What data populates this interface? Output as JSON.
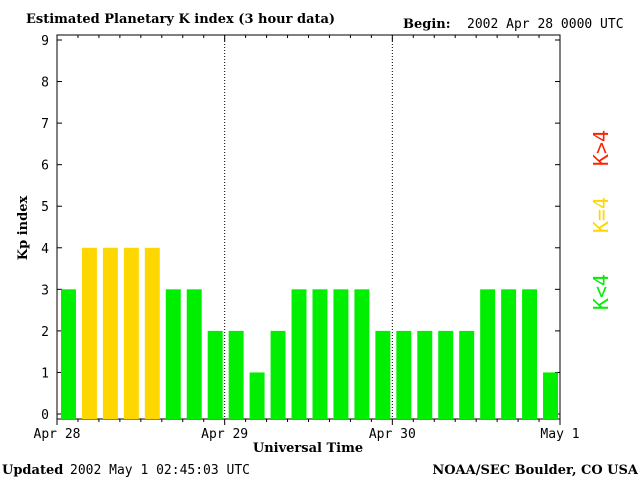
{
  "header": {
    "title": "Estimated Planetary K index (3 hour data)",
    "begin_label": "Begin:",
    "begin_value": "2002 Apr 28 0000 UTC"
  },
  "footer": {
    "updated_label": "Updated",
    "updated_value": "2002 May  1 02:45:03 UTC",
    "credit": "NOAA/SEC Boulder, CO USA"
  },
  "legend": {
    "greater": "K>4",
    "equal": "K=4",
    "less": "K<4"
  },
  "colors": {
    "green": "#00ee00",
    "yellow": "#ffd700",
    "red": "#ff2200"
  },
  "chart_data": {
    "type": "bar",
    "title": "Estimated Planetary K index (3 hour data)",
    "xlabel": "Universal Time",
    "ylabel": "Kp index",
    "ylim": [
      0,
      9
    ],
    "y_ticks": [
      "0",
      "1",
      "2",
      "3",
      "4",
      "5",
      "6",
      "7",
      "8",
      "9"
    ],
    "x_tick_labels": [
      "Apr 28",
      "Apr 29",
      "Apr 30",
      "May 1"
    ],
    "grid": "vertical dotted day separators",
    "interval_hours": 3,
    "values": [
      3,
      4,
      4,
      4,
      4,
      3,
      3,
      2,
      2,
      1,
      2,
      3,
      3,
      3,
      3,
      2,
      2,
      2,
      2,
      2,
      3,
      3,
      3,
      1
    ],
    "color_rule": "green when K<4, yellow when K=4, red when K>4"
  }
}
